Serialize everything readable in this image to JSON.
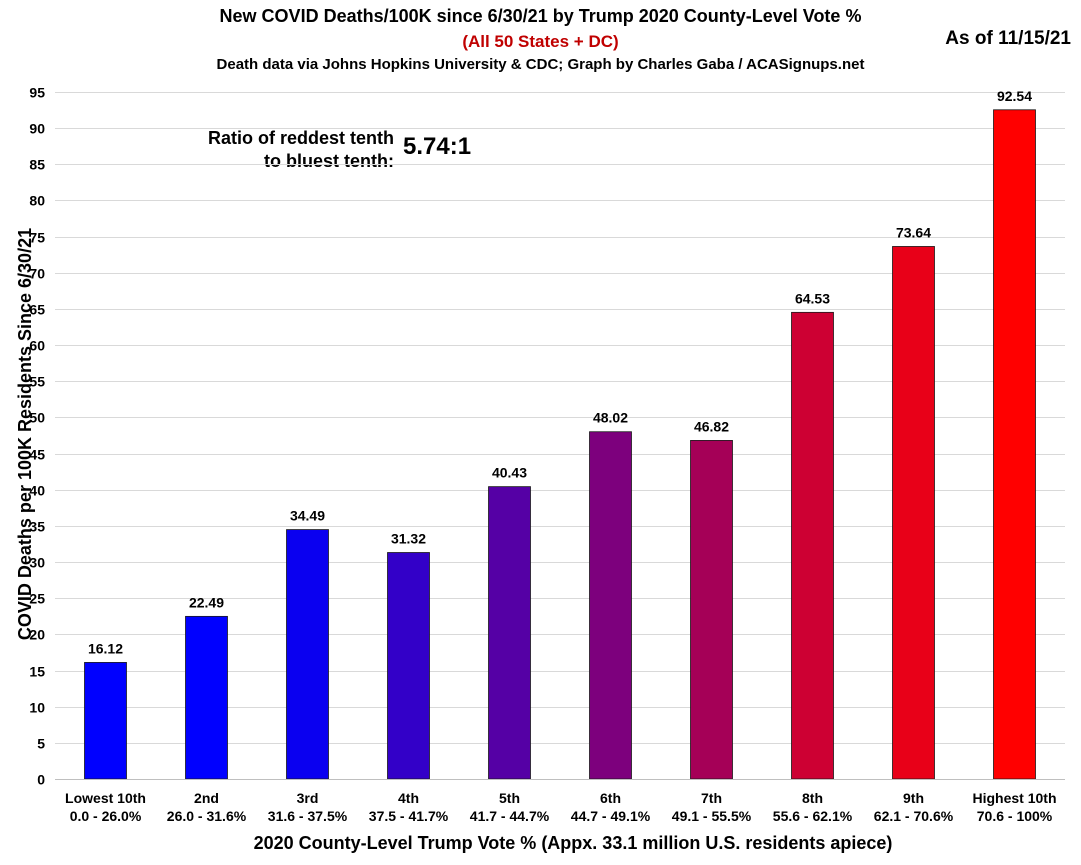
{
  "chart_data": {
    "type": "bar",
    "title": "New COVID Deaths/100K since 6/30/21 by Trump 2020 County-Level Vote %",
    "subtitle_red": "(All 50 States + DC)",
    "subtitle_source": "Death data via Johns Hopkins University & CDC; Graph by Charles Gaba / ACASignups.net",
    "as_of": "As of 11/15/21",
    "annotation_label_line1": "Ratio of reddest tenth",
    "annotation_label_line2": "to bluest tenth:",
    "annotation_value": "5.74:1",
    "xlabel": "2020 County-Level Trump Vote % (Appx. 33.1 million U.S. residents apiece)",
    "ylabel": "COVID Deaths per 100K Residents Since 6/30/21",
    "ylim": [
      0,
      95
    ],
    "yticks": [
      0,
      5,
      10,
      15,
      20,
      25,
      30,
      35,
      40,
      45,
      50,
      55,
      60,
      65,
      70,
      75,
      80,
      85,
      90,
      95
    ],
    "grid": true,
    "categories": [
      "Lowest 10th",
      "2nd",
      "3rd",
      "4th",
      "5th",
      "6th",
      "7th",
      "8th",
      "9th",
      "Highest 10th"
    ],
    "ranges": [
      "0.0 - 26.0%",
      "26.0 - 31.6%",
      "31.6 - 37.5%",
      "37.5 - 41.7%",
      "41.7 - 44.7%",
      "44.7 - 49.1%",
      "49.1 - 55.5%",
      "55.6 - 62.1%",
      "62.1 - 70.6%",
      "70.6 - 100%"
    ],
    "values": [
      16.12,
      22.49,
      34.49,
      31.32,
      40.43,
      48.02,
      46.82,
      64.53,
      73.64,
      92.54
    ],
    "labels": [
      "16.12",
      "22.49",
      "34.49",
      "31.32",
      "40.43",
      "48.02",
      "46.82",
      "64.53",
      "73.64",
      "92.54"
    ],
    "colors": [
      "#0000ff",
      "#0000ff",
      "#0a00f0",
      "#3300c8",
      "#5500a5",
      "#7d007d",
      "#a50057",
      "#cd0033",
      "#e80018",
      "#ff0000"
    ]
  }
}
